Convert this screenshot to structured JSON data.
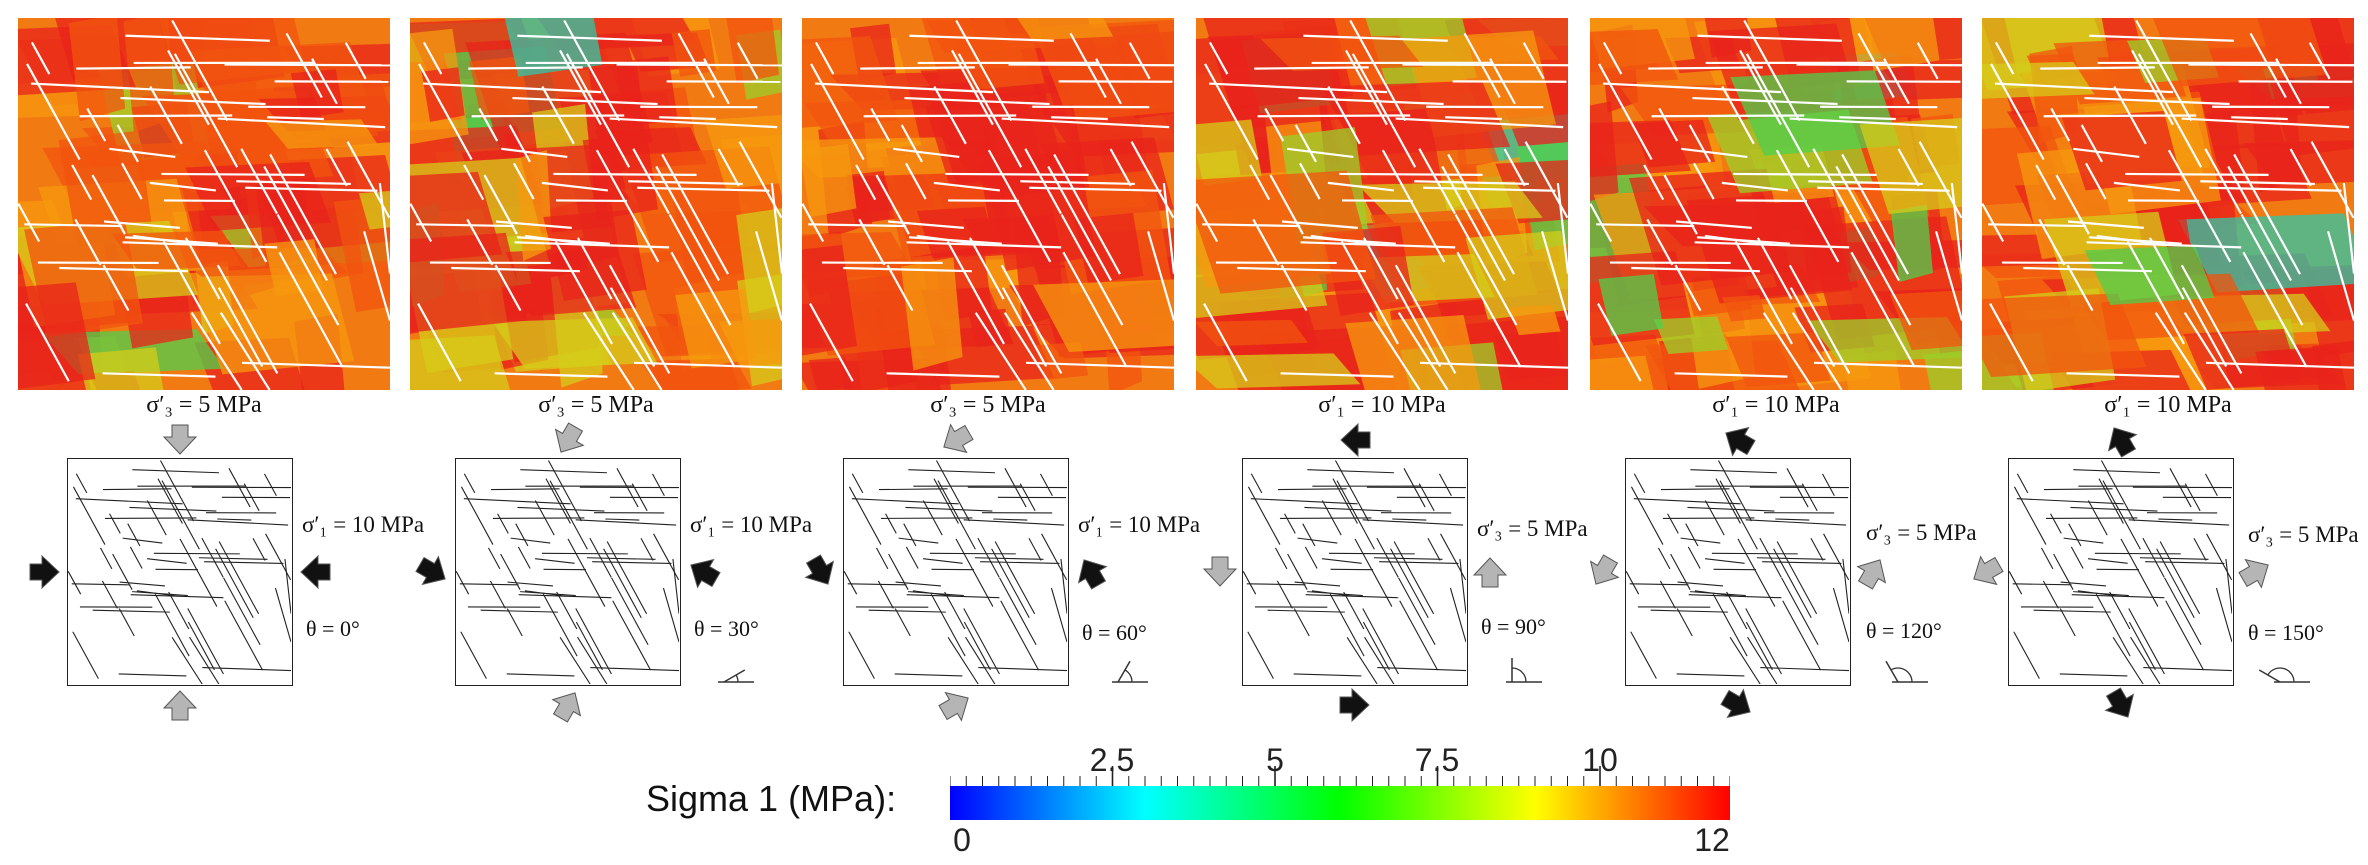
{
  "panels": [
    {
      "sigma_top": "σ′₃ = 5 MPa",
      "sigma_side": "σ′₁ = 10 MPa",
      "theta": "θ = 0°",
      "angle_deg": 0,
      "top_arrow": "grey",
      "side_arrow": "black"
    },
    {
      "sigma_top": "σ′₃ = 5 MPa",
      "sigma_side": "σ′₁ = 10 MPa",
      "theta": "θ = 30°",
      "angle_deg": 30,
      "top_arrow": "grey",
      "side_arrow": "black"
    },
    {
      "sigma_top": "σ′₃ = 5 MPa",
      "sigma_side": "σ′₁ = 10 MPa",
      "theta": "θ = 60°",
      "angle_deg": 60,
      "top_arrow": "grey",
      "side_arrow": "black"
    },
    {
      "sigma_top": "σ′₁ = 10 MPa",
      "sigma_side": "σ′₃ = 5 MPa",
      "theta": "θ = 90°",
      "angle_deg": 90,
      "top_arrow": "black",
      "side_arrow": "grey"
    },
    {
      "sigma_top": "σ′₁ = 10 MPa",
      "sigma_side": "σ′₃ = 5 MPa",
      "theta": "θ = 120°",
      "angle_deg": 120,
      "top_arrow": "black",
      "side_arrow": "grey"
    },
    {
      "sigma_top": "σ′₁ = 10 MPa",
      "sigma_side": "σ′₃ = 5 MPa",
      "theta": "θ = 150°",
      "angle_deg": 150,
      "top_arrow": "black",
      "side_arrow": "grey"
    }
  ],
  "legend": {
    "title": "Sigma 1 (MPa):",
    "min_label": "0",
    "max_label": "12",
    "tick_labels": [
      "2.5",
      "5",
      "7.5",
      "10"
    ],
    "tick_values": [
      2.5,
      5,
      7.5,
      10
    ],
    "range": [
      0,
      12
    ],
    "colors": [
      "#0000ff",
      "#00ffff",
      "#00ff00",
      "#ffff00",
      "#ff0000"
    ]
  },
  "colors": {
    "fracture_trace": "#ffffff",
    "schematic_line": "#222222",
    "arrow_black": "#111111",
    "arrow_grey": "#b5b5b5"
  }
}
